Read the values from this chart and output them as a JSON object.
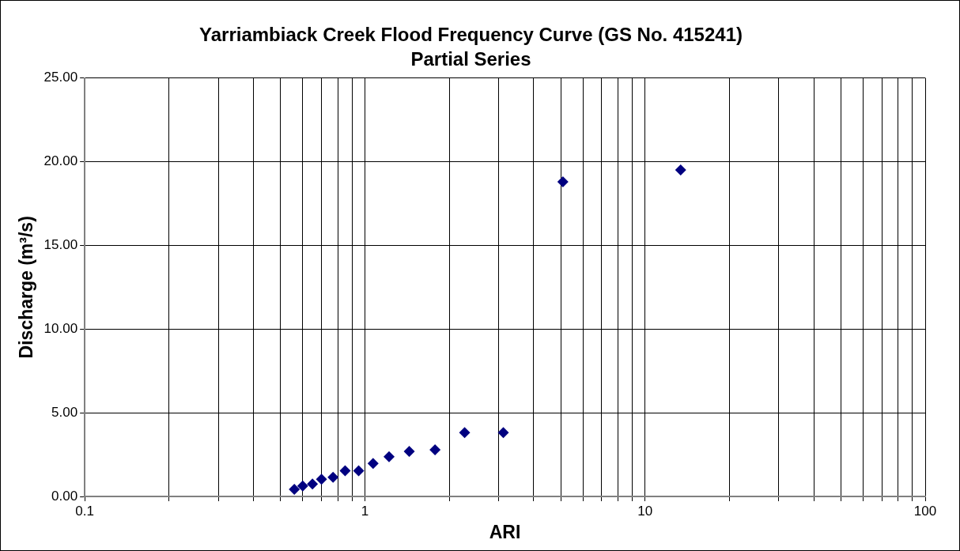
{
  "chart_data": {
    "type": "scatter",
    "title": "Yarriambiack Creek Flood Frequency Curve (GS No. 415241)",
    "subtitle": "Partial Series",
    "xlabel": "ARI",
    "ylabel": "Discharge (m³/s)",
    "log": "x",
    "grid": true,
    "legend": false,
    "marker": "diamond",
    "xlim": [
      0.1,
      100
    ],
    "ylim": [
      0,
      25
    ],
    "xticks": [
      0.1,
      {
        "value": 0.2,
        "label": null
      },
      {
        "value": 0.3,
        "label": null
      },
      {
        "value": 0.4,
        "label": null
      },
      {
        "value": 0.5,
        "label": null
      },
      {
        "value": 0.6,
        "label": null
      },
      {
        "value": 0.7,
        "label": null
      },
      {
        "value": 0.8,
        "label": null
      },
      {
        "value": 0.9,
        "label": null
      },
      1,
      {
        "value": 2,
        "label": null
      },
      {
        "value": 3,
        "label": null
      },
      {
        "value": 4,
        "label": null
      },
      {
        "value": 5,
        "label": null
      },
      {
        "value": 6,
        "label": null
      },
      {
        "value": 7,
        "label": null
      },
      {
        "value": 8,
        "label": null
      },
      {
        "value": 9,
        "label": null
      },
      10,
      {
        "value": 20,
        "label": null
      },
      {
        "value": 30,
        "label": null
      },
      {
        "value": 40,
        "label": null
      },
      {
        "value": 50,
        "label": null
      },
      {
        "value": 60,
        "label": null
      },
      {
        "value": 70,
        "label": null
      },
      {
        "value": 80,
        "label": null
      },
      {
        "value": 90,
        "label": null
      },
      100
    ],
    "yticks": [
      {
        "value": 0,
        "label": "0.00"
      },
      {
        "value": 5,
        "label": "5.00"
      },
      {
        "value": 10,
        "label": "10.00"
      },
      {
        "value": 15,
        "label": "15.00"
      },
      {
        "value": 20,
        "label": "20.00"
      },
      {
        "value": 25,
        "label": "25.00"
      }
    ],
    "series": [
      {
        "color": "#000080",
        "x": [
          0.56,
          0.6,
          0.65,
          0.7,
          0.77,
          0.85,
          0.95,
          1.07,
          1.22,
          1.44,
          1.78,
          2.27,
          3.12,
          5.09,
          13.4
        ],
        "values": [
          0.43,
          0.63,
          0.74,
          1.03,
          1.15,
          1.54,
          1.53,
          1.97,
          2.37,
          2.69,
          2.79,
          3.81,
          3.81,
          18.8,
          19.5
        ]
      }
    ]
  }
}
